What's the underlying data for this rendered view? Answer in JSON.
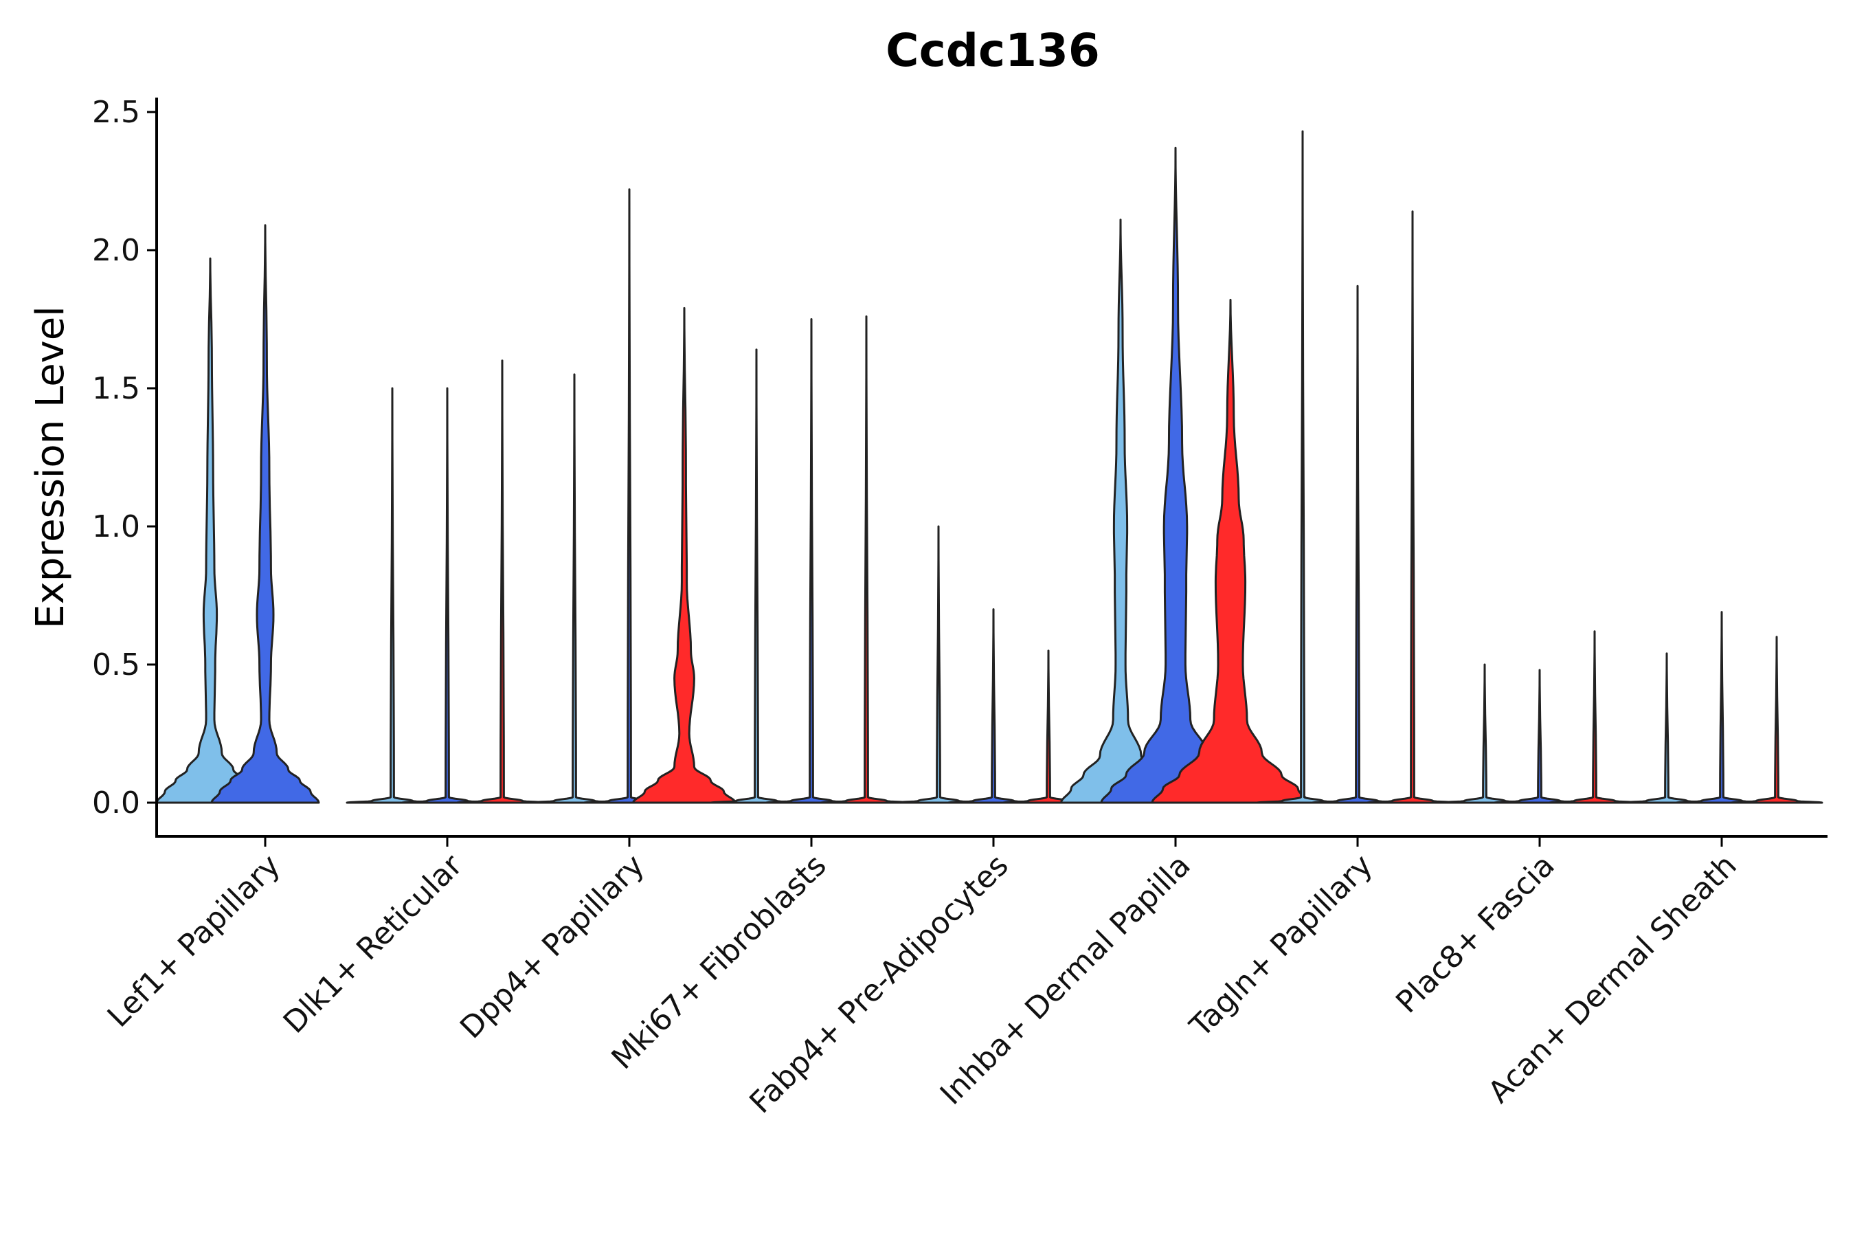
{
  "chart_data": {
    "type": "violin",
    "title": "Ccdc136",
    "xlabel": "",
    "ylabel": "Expression Level",
    "ylim": [
      -0.12,
      2.55
    ],
    "yticks": [
      0.0,
      0.5,
      1.0,
      1.5,
      2.0,
      2.5
    ],
    "ytick_labels": [
      "0.0",
      "0.5",
      "1.0",
      "1.5",
      "2.0",
      "2.5"
    ],
    "grid": false,
    "legend": "none",
    "series_colors": {
      "light_blue": "#7fbfea",
      "blue": "#4169e6",
      "red": "#ff2a2a"
    },
    "categories": [
      "Lef1+ Papillary",
      "Dlk1+ Reticular",
      "Dpp4+ Papillary",
      "Mki67+ Fibroblasts",
      "Fabp4+ Pre-Adipocytes",
      "Inhba+ Dermal Papilla",
      "Tagln+ Papillary",
      "Plac8+ Fascia",
      "Acan+ Dermal Sheath"
    ],
    "groups": [
      {
        "category": "Lef1+ Papillary",
        "violins": [
          {
            "color": "light_blue",
            "max": 1.97,
            "profile": [
              [
                0,
                0.65
              ],
              [
                0.04,
                0.55
              ],
              [
                0.08,
                0.42
              ],
              [
                0.12,
                0.28
              ],
              [
                0.18,
                0.14
              ],
              [
                0.3,
                0.05
              ],
              [
                0.5,
                0.06
              ],
              [
                0.68,
                0.08
              ],
              [
                0.85,
                0.05
              ],
              [
                1.2,
                0.035
              ],
              [
                1.6,
                0.02
              ],
              [
                1.97,
                0
              ]
            ]
          },
          {
            "color": "blue",
            "max": 2.09,
            "profile": [
              [
                0,
                0.65
              ],
              [
                0.04,
                0.55
              ],
              [
                0.08,
                0.42
              ],
              [
                0.12,
                0.28
              ],
              [
                0.18,
                0.14
              ],
              [
                0.3,
                0.05
              ],
              [
                0.5,
                0.07
              ],
              [
                0.68,
                0.1
              ],
              [
                0.85,
                0.07
              ],
              [
                1.2,
                0.05
              ],
              [
                1.6,
                0.02
              ],
              [
                2.09,
                0
              ]
            ]
          },
          {
            "color": "red",
            "max": 0,
            "profile": []
          }
        ]
      },
      {
        "category": "Dlk1+ Reticular",
        "violins": [
          {
            "color": "light_blue",
            "max": 1.5,
            "profile": [
              [
                0,
                0.55
              ],
              [
                0.006,
                0.25
              ],
              [
                0.02,
                0.02
              ],
              [
                1.5,
                0
              ]
            ]
          },
          {
            "color": "blue",
            "max": 1.5,
            "profile": [
              [
                0,
                0.55
              ],
              [
                0.006,
                0.25
              ],
              [
                0.02,
                0.02
              ],
              [
                1.5,
                0
              ]
            ]
          },
          {
            "color": "red",
            "max": 1.6,
            "profile": [
              [
                0,
                0.55
              ],
              [
                0.006,
                0.25
              ],
              [
                0.02,
                0.02
              ],
              [
                1.6,
                0
              ]
            ]
          }
        ]
      },
      {
        "category": "Dpp4+ Papillary",
        "violins": [
          {
            "color": "light_blue",
            "max": 1.55,
            "profile": [
              [
                0,
                0.55
              ],
              [
                0.006,
                0.25
              ],
              [
                0.02,
                0.02
              ],
              [
                1.55,
                0
              ]
            ]
          },
          {
            "color": "blue",
            "max": 2.22,
            "profile": [
              [
                0,
                0.55
              ],
              [
                0.006,
                0.25
              ],
              [
                0.02,
                0.02
              ],
              [
                2.22,
                0
              ]
            ]
          },
          {
            "color": "red",
            "max": 1.79,
            "profile": [
              [
                0,
                0.62
              ],
              [
                0.04,
                0.48
              ],
              [
                0.08,
                0.32
              ],
              [
                0.13,
                0.12
              ],
              [
                0.25,
                0.06
              ],
              [
                0.45,
                0.12
              ],
              [
                0.55,
                0.08
              ],
              [
                0.8,
                0.03
              ],
              [
                1.2,
                0.02
              ],
              [
                1.79,
                0
              ]
            ]
          }
        ]
      },
      {
        "category": "Mki67+ Fibroblasts",
        "violins": [
          {
            "color": "light_blue",
            "max": 1.64,
            "profile": [
              [
                0,
                0.55
              ],
              [
                0.006,
                0.25
              ],
              [
                0.02,
                0.02
              ],
              [
                1.64,
                0
              ]
            ]
          },
          {
            "color": "blue",
            "max": 1.75,
            "profile": [
              [
                0,
                0.55
              ],
              [
                0.006,
                0.25
              ],
              [
                0.02,
                0.02
              ],
              [
                1.75,
                0
              ]
            ]
          },
          {
            "color": "red",
            "max": 1.76,
            "profile": [
              [
                0,
                0.55
              ],
              [
                0.006,
                0.25
              ],
              [
                0.02,
                0.02
              ],
              [
                1.76,
                0
              ]
            ]
          }
        ]
      },
      {
        "category": "Fabp4+ Pre-Adipocytes",
        "violins": [
          {
            "color": "light_blue",
            "max": 1.0,
            "profile": [
              [
                0,
                0.55
              ],
              [
                0.006,
                0.25
              ],
              [
                0.02,
                0.02
              ],
              [
                1.0,
                0
              ]
            ]
          },
          {
            "color": "blue",
            "max": 0.7,
            "profile": [
              [
                0,
                0.55
              ],
              [
                0.006,
                0.25
              ],
              [
                0.02,
                0.02
              ],
              [
                0.7,
                0
              ]
            ]
          },
          {
            "color": "red",
            "max": 0.55,
            "profile": [
              [
                0,
                0.55
              ],
              [
                0.006,
                0.25
              ],
              [
                0.02,
                0.02
              ],
              [
                0.55,
                0
              ]
            ]
          }
        ]
      },
      {
        "category": "Inhba+ Dermal Papilla",
        "violins": [
          {
            "color": "light_blue",
            "max": 2.11,
            "profile": [
              [
                0,
                0.72
              ],
              [
                0.05,
                0.6
              ],
              [
                0.1,
                0.45
              ],
              [
                0.17,
                0.25
              ],
              [
                0.3,
                0.09
              ],
              [
                0.5,
                0.06
              ],
              [
                0.8,
                0.07
              ],
              [
                1.0,
                0.08
              ],
              [
                1.3,
                0.05
              ],
              [
                1.7,
                0.025
              ],
              [
                2.11,
                0
              ]
            ]
          },
          {
            "color": "blue",
            "max": 2.37,
            "profile": [
              [
                0,
                0.9
              ],
              [
                0.05,
                0.78
              ],
              [
                0.1,
                0.6
              ],
              [
                0.18,
                0.38
              ],
              [
                0.3,
                0.18
              ],
              [
                0.5,
                0.12
              ],
              [
                0.8,
                0.13
              ],
              [
                1.0,
                0.14
              ],
              [
                1.3,
                0.08
              ],
              [
                1.8,
                0.03
              ],
              [
                2.37,
                0
              ]
            ]
          },
          {
            "color": "red",
            "max": 1.82,
            "profile": [
              [
                0,
                0.95
              ],
              [
                0.05,
                0.82
              ],
              [
                0.1,
                0.62
              ],
              [
                0.18,
                0.38
              ],
              [
                0.3,
                0.2
              ],
              [
                0.5,
                0.15
              ],
              [
                0.8,
                0.18
              ],
              [
                0.95,
                0.16
              ],
              [
                1.1,
                0.1
              ],
              [
                1.4,
                0.04
              ],
              [
                1.82,
                0
              ]
            ]
          }
        ]
      },
      {
        "category": "Tagln+ Papillary",
        "violins": [
          {
            "color": "light_blue",
            "max": 2.43,
            "profile": [
              [
                0,
                0.55
              ],
              [
                0.006,
                0.25
              ],
              [
                0.02,
                0.02
              ],
              [
                2.43,
                0
              ]
            ]
          },
          {
            "color": "blue",
            "max": 1.87,
            "profile": [
              [
                0,
                0.55
              ],
              [
                0.006,
                0.25
              ],
              [
                0.02,
                0.02
              ],
              [
                1.87,
                0
              ]
            ]
          },
          {
            "color": "red",
            "max": 2.14,
            "profile": [
              [
                0,
                0.55
              ],
              [
                0.006,
                0.25
              ],
              [
                0.02,
                0.02
              ],
              [
                2.14,
                0
              ]
            ]
          }
        ]
      },
      {
        "category": "Plac8+ Fascia",
        "violins": [
          {
            "color": "light_blue",
            "max": 0.5,
            "profile": [
              [
                0,
                0.55
              ],
              [
                0.006,
                0.25
              ],
              [
                0.02,
                0.02
              ],
              [
                0.5,
                0
              ]
            ]
          },
          {
            "color": "blue",
            "max": 0.48,
            "profile": [
              [
                0,
                0.55
              ],
              [
                0.006,
                0.25
              ],
              [
                0.02,
                0.02
              ],
              [
                0.48,
                0
              ]
            ]
          },
          {
            "color": "red",
            "max": 0.62,
            "profile": [
              [
                0,
                0.55
              ],
              [
                0.006,
                0.25
              ],
              [
                0.02,
                0.02
              ],
              [
                0.62,
                0
              ]
            ]
          }
        ]
      },
      {
        "category": "Acan+ Dermal Sheath",
        "violins": [
          {
            "color": "light_blue",
            "max": 0.54,
            "profile": [
              [
                0,
                0.55
              ],
              [
                0.006,
                0.25
              ],
              [
                0.02,
                0.02
              ],
              [
                0.54,
                0
              ]
            ]
          },
          {
            "color": "blue",
            "max": 0.69,
            "profile": [
              [
                0,
                0.55
              ],
              [
                0.006,
                0.25
              ],
              [
                0.02,
                0.02
              ],
              [
                0.69,
                0
              ]
            ]
          },
          {
            "color": "red",
            "max": 0.6,
            "profile": [
              [
                0,
                0.55
              ],
              [
                0.006,
                0.25
              ],
              [
                0.02,
                0.02
              ],
              [
                0.6,
                0
              ]
            ]
          }
        ]
      }
    ]
  }
}
